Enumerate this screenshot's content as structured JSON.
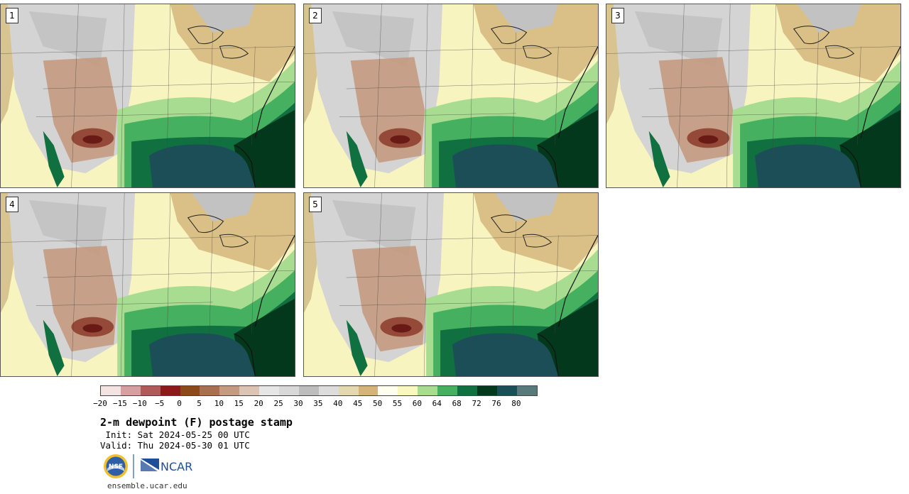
{
  "title": "2-m dewpoint (F) postage stamp",
  "init_line": " Init: Sat 2024-05-25 00 UTC",
  "valid_line": "Valid: Thu 2024-05-30 01 UTC",
  "footer": "ensemble.ucar.edu",
  "logos": {
    "nsf": "NSF",
    "ncar": "NCAR"
  },
  "panels": [
    {
      "label": "1"
    },
    {
      "label": "2"
    },
    {
      "label": "3"
    },
    {
      "label": "4"
    },
    {
      "label": "5"
    }
  ],
  "colorbar": {
    "ticks": [
      "-20",
      "-15",
      "-10",
      "-5",
      "0",
      "5",
      "10",
      "15",
      "20",
      "25",
      "30",
      "35",
      "40",
      "45",
      "50",
      "55",
      "60",
      "64",
      "68",
      "72",
      "76",
      "80"
    ],
    "colors": [
      "#f3e3e3",
      "#d7a0a0",
      "#b05a5a",
      "#8c1a1a",
      "#8c4a1a",
      "#a87050",
      "#c49a80",
      "#dcc4b4",
      "#e6e6e6",
      "#d8d8d8",
      "#bdbdbd",
      "#dcdcdc",
      "#e4d8b0",
      "#d4b478",
      "#fffff0",
      "#f8f8c0",
      "#a8dc90",
      "#44b060",
      "#107040",
      "#04381c",
      "#1c4e58",
      "#587a7a"
    ]
  }
}
